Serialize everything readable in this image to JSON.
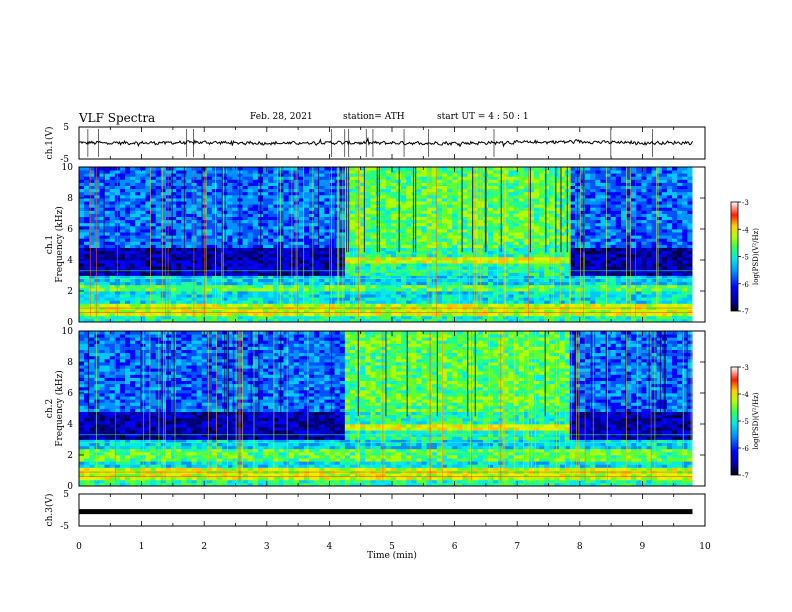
{
  "header": {
    "title": "VLF Spectra",
    "date": "Feb. 28, 2021",
    "station": "station= ATH",
    "start_ut": "start  UT  =   4 : 50 : 1"
  },
  "colors": {
    "waveform": "#000000",
    "colormap": [
      "#000080",
      "#0000ff",
      "#0080ff",
      "#00e0ff",
      "#40ff60",
      "#c0ff00",
      "#ffd000",
      "#ff4000",
      "#ff0000",
      "#ffffff"
    ]
  },
  "chart_data": [
    {
      "type": "line",
      "panel": "ch1-waveform",
      "ylabel": "ch.1(V)",
      "ylim": [
        -5,
        5
      ],
      "yticks": [
        "5",
        "-5"
      ],
      "x": [
        0,
        1,
        2,
        3,
        4,
        5,
        6,
        7,
        8,
        9,
        9.8
      ],
      "y": [
        0.1,
        0.0,
        0.2,
        -0.1,
        0.1,
        0.0,
        -0.1,
        0.2,
        0.4,
        0.0,
        0.1
      ],
      "xlim": [
        0,
        10
      ]
    },
    {
      "type": "heatmap",
      "panel": "ch1-spectrogram",
      "ylabel_top": "ch.1",
      "ylabel": "Frequency (kHz)",
      "ylim": [
        0,
        10
      ],
      "yticks": [
        "0",
        "2",
        "4",
        "6",
        "8",
        "10"
      ],
      "xlim": [
        0,
        10
      ],
      "data_end_min": 9.8,
      "enhanced_interval_min": [
        4.25,
        7.8
      ],
      "enhanced_band_khz": [
        3.7,
        4.2
      ],
      "colorbar": {
        "label": "log(PSD)(V²/Hz)",
        "range": [
          -7,
          -3
        ],
        "ticks": [
          "-3",
          "-4",
          "-5",
          "-6",
          "-7"
        ]
      }
    },
    {
      "type": "heatmap",
      "panel": "ch2-spectrogram",
      "ylabel_top": "ch.2",
      "ylabel": "Frequency (kHz)",
      "ylim": [
        0,
        10
      ],
      "yticks": [
        "0",
        "2",
        "4",
        "6",
        "8",
        "10"
      ],
      "xlim": [
        0,
        10
      ],
      "data_end_min": 9.8,
      "enhanced_interval_min": [
        4.25,
        7.8
      ],
      "enhanced_band_khz": [
        3.5,
        4.0
      ],
      "colorbar": {
        "label": "log(PSD)(V²/Hz)",
        "range": [
          -7,
          -3
        ],
        "ticks": [
          "-3",
          "-4",
          "-5",
          "-6",
          "-7"
        ]
      }
    },
    {
      "type": "line",
      "panel": "ch3-waveform",
      "ylabel": "ch.3(V)",
      "ylim": [
        -5,
        5
      ],
      "yticks": [
        "5",
        "-5"
      ],
      "x": [
        0,
        9.8
      ],
      "y": [
        -0.5,
        -0.5
      ],
      "xlim": [
        0,
        10
      ],
      "xlabel": "Time (min)",
      "xticks": [
        "0",
        "1",
        "2",
        "3",
        "4",
        "5",
        "6",
        "7",
        "8",
        "9",
        "10"
      ]
    }
  ]
}
